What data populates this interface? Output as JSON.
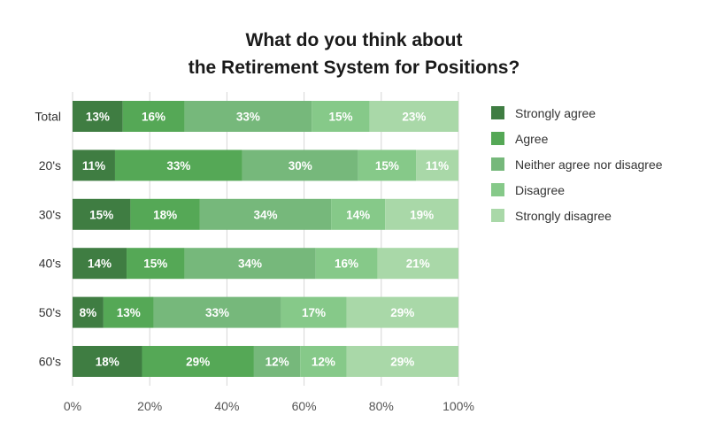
{
  "chart_data": {
    "type": "bar",
    "orientation": "horizontal",
    "stacked": true,
    "title": [
      "What do you think about",
      "the Retirement System for Positions?"
    ],
    "categories": [
      "Total",
      "20's",
      "30's",
      "40's",
      "50's",
      "60's"
    ],
    "series": [
      {
        "name": "Strongly agree",
        "color": "#3f7d42",
        "values": [
          13,
          11,
          15,
          14,
          8,
          18
        ]
      },
      {
        "name": "Agree",
        "color": "#55a856",
        "values": [
          16,
          33,
          18,
          15,
          13,
          29
        ]
      },
      {
        "name": "Neither agree nor disagree",
        "color": "#76b87b",
        "values": [
          33,
          30,
          34,
          34,
          33,
          12
        ]
      },
      {
        "name": "Disagree",
        "color": "#86c989",
        "values": [
          15,
          15,
          14,
          16,
          17,
          12
        ]
      },
      {
        "name": "Strongly disagree",
        "color": "#a9d8a8",
        "values": [
          23,
          11,
          19,
          21,
          29,
          29
        ]
      }
    ],
    "x_ticks": [
      "0%",
      "20%",
      "40%",
      "60%",
      "80%",
      "100%"
    ],
    "xlim": [
      0,
      100
    ],
    "legend_position": "right",
    "grid": true
  }
}
